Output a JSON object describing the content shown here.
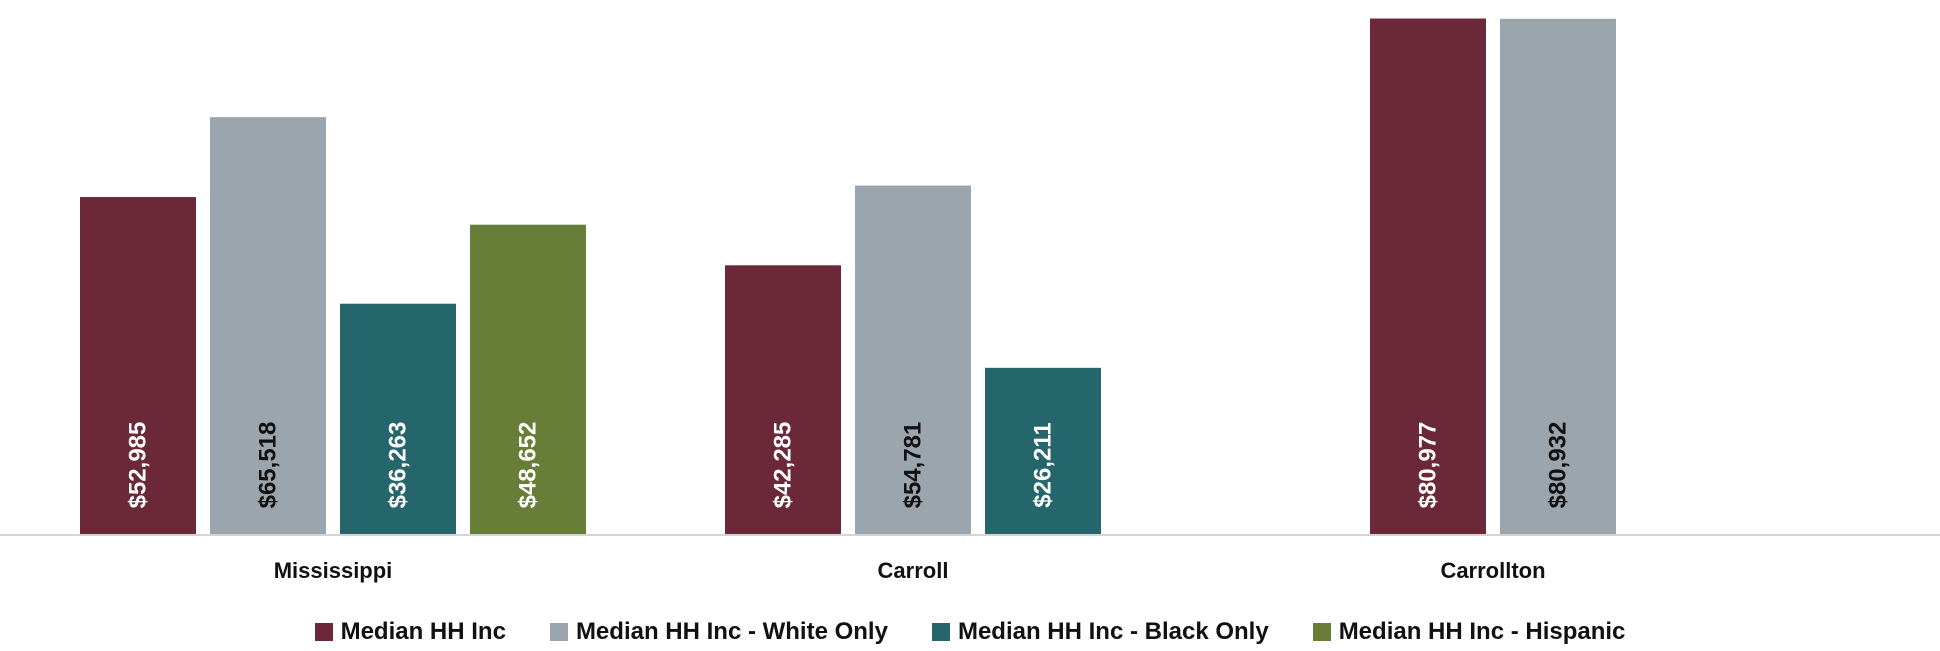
{
  "chart_data": {
    "type": "bar",
    "categories": [
      "Mississippi",
      "Carroll",
      "Carrollton"
    ],
    "series": [
      {
        "name": "Median HH Inc",
        "color": "#6b2839",
        "values": [
          52985,
          42285,
          80977
        ],
        "labels": [
          "$52,985",
          "$42,285",
          "$80,977"
        ]
      },
      {
        "name": "Median HH Inc - White Only",
        "color": "#9ba5ae",
        "values": [
          65518,
          54781,
          80932
        ],
        "labels": [
          "$65,518",
          "$54,781",
          "$80,932"
        ]
      },
      {
        "name": "Median HH Inc - Black Only",
        "color": "#25666d",
        "values": [
          36263,
          26211,
          null
        ],
        "labels": [
          "$36,263",
          "$26,211",
          ""
        ]
      },
      {
        "name": "Median HH Inc - Hispanic",
        "color": "#687d37",
        "values": [
          48652,
          null,
          null
        ],
        "labels": [
          "$48,652",
          "",
          ""
        ]
      }
    ],
    "ylim": [
      0,
      82000
    ],
    "grid": false,
    "legend_position": "bottom",
    "label_colors": {
      "Median HH Inc": "#ffffff",
      "Median HH Inc - White Only": "#111111",
      "Median HH Inc - Black Only": "#ffffff",
      "Median HH Inc - Hispanic": "#ffffff"
    }
  }
}
